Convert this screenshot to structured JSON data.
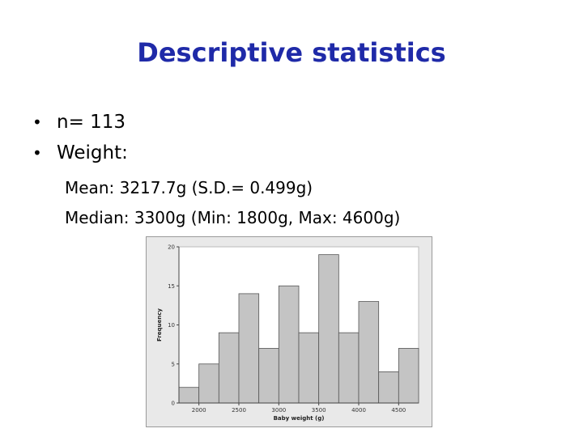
{
  "slide": {
    "title": "Descriptive statistics",
    "bullets": [
      "n= 113",
      "Weight:"
    ],
    "bullet_symbol": "•",
    "sub_lines": [
      "Mean: 3217.7g (S.D.= 0.499g)",
      "Median: 3300g (Min: 1800g, Max: 4600g)"
    ],
    "colors": {
      "title": "#1f2aa8",
      "bar_fill": "#c4c4c4",
      "bar_stroke": "#555555",
      "plot_bg": "#ffffff",
      "frame_bg": "#e9e9e9"
    }
  },
  "chart_data": {
    "type": "bar",
    "title": "",
    "xlabel": "Baby weight (g)",
    "ylabel": "Frequency",
    "bin_edges": [
      1750,
      2000,
      2250,
      2500,
      2750,
      3000,
      3250,
      3500,
      3750,
      4000,
      4250,
      4500,
      4750
    ],
    "values": [
      2,
      5,
      9,
      14,
      7,
      15,
      9,
      19,
      9,
      13,
      4,
      7
    ],
    "xticks": [
      2000,
      2500,
      3000,
      3500,
      4000,
      4500
    ],
    "yticks": [
      0,
      5,
      10,
      15,
      20
    ],
    "ylim": [
      0,
      20
    ],
    "xlim": [
      1750,
      4750
    ],
    "grid": false
  }
}
